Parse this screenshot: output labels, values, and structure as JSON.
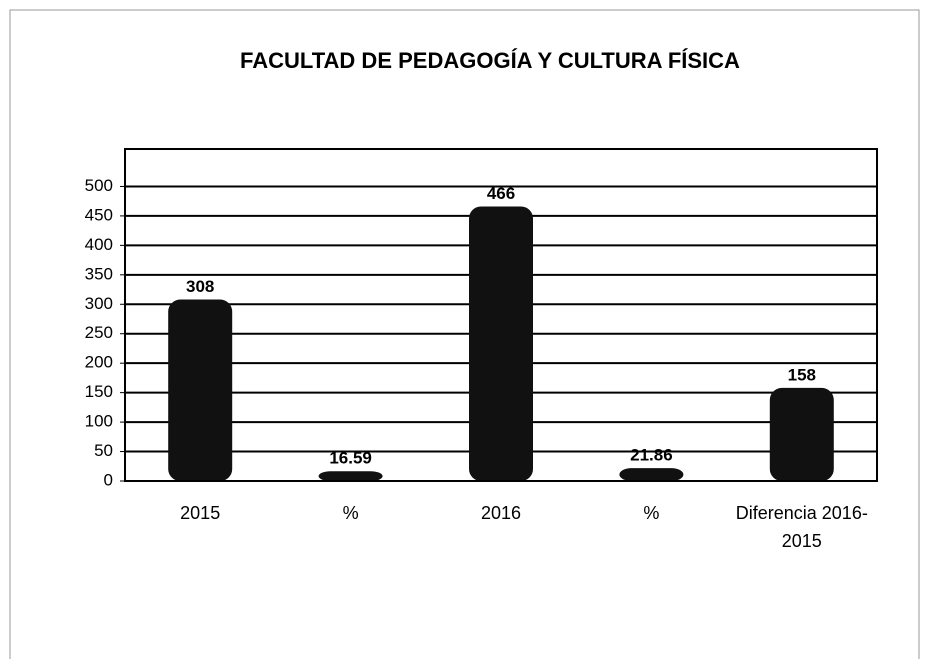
{
  "chart_data": {
    "type": "bar",
    "title": "FACULTAD DE PEDAGOGÍA Y CULTURA FÍSICA",
    "categories": [
      "2015",
      "%",
      "2016",
      "%",
      "Diferencia 2016-2015"
    ],
    "values": [
      308,
      16.59,
      466,
      21.86,
      158
    ],
    "color": "#111111",
    "ylim": [
      0,
      550
    ],
    "yticks": [
      0,
      50,
      100,
      150,
      200,
      250,
      300,
      350,
      400,
      450,
      500
    ],
    "grid": true
  }
}
